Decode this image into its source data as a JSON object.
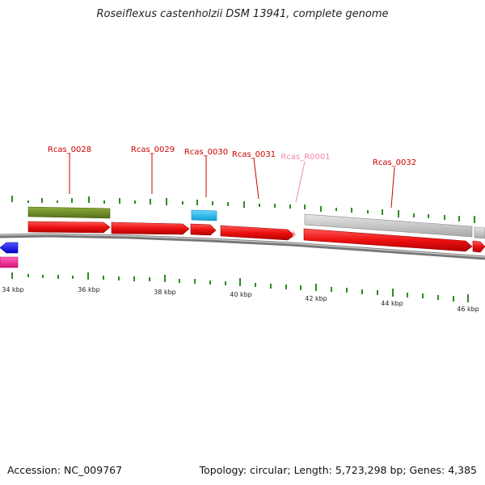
{
  "title": "Roseiflexus castenholzii DSM 13941, complete genome",
  "footer": {
    "accession": "Accession: NC_009767",
    "summary": "Topology: circular; Length: 5,723,298 bp; Genes: 4,385"
  },
  "scale": {
    "labels": [
      "34 kbp",
      "36 kbp",
      "38 kbp",
      "40 kbp",
      "42 kbp",
      "44 kbp",
      "46 kbp"
    ]
  },
  "gene_labels": [
    {
      "text": "Rcas_0028",
      "color": "#cc0000"
    },
    {
      "text": "Rcas_0029",
      "color": "#cc0000"
    },
    {
      "text": "Rcas_0030",
      "color": "#cc0000"
    },
    {
      "text": "Rcas_0031",
      "color": "#cc0000"
    },
    {
      "text": "Rcas_R0001",
      "color": "#f08aa8"
    },
    {
      "text": "Rcas_0032",
      "color": "#cc0000"
    }
  ],
  "colors": {
    "cds": "#ee1111",
    "green_feature": "#6b8e23",
    "cyan_feature": "#19b7ee",
    "gray_feature": "#c8c8c8",
    "blue_feature": "#1a1aff",
    "magenta_feature": "#ff1493",
    "tick": "#2e8b22",
    "backbone": "#888888"
  }
}
